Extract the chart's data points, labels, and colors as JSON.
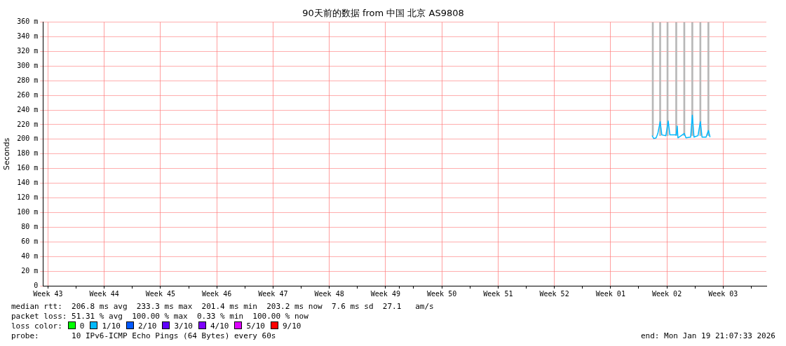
{
  "chart_data": {
    "type": "line",
    "title": "90天前的数据 from 中国 北京 AS9808",
    "ylabel": "Seconds",
    "xlim": [
      "2025-10-21T21:07",
      "2026-01-19T21:07"
    ],
    "xticks": [
      {
        "value": "2025-10-26",
        "label": null
      },
      {
        "value": "2025-11-02",
        "label": null
      },
      {
        "value": "2025-11-09",
        "label": null
      },
      {
        "value": "2025-11-16",
        "label": null
      },
      {
        "value": "2025-11-23",
        "label": null
      },
      {
        "value": "2025-11-30",
        "label": null
      },
      {
        "value": "2025-12-07",
        "label": null
      },
      {
        "value": "2025-12-14",
        "label": null
      },
      {
        "value": "2025-12-21",
        "label": null
      },
      {
        "value": "2025-12-28",
        "label": null
      },
      {
        "value": "2026-01-04",
        "label": null
      },
      {
        "value": "2026-01-11",
        "label": null
      },
      {
        "value": "2026-01-18",
        "label": null
      },
      {
        "value": "2025-10-22T12:00",
        "label": "Week 43"
      },
      {
        "value": "2025-10-29T12:00",
        "label": "Week 44"
      },
      {
        "value": "2025-11-05T12:00",
        "label": "Week 45"
      },
      {
        "value": "2025-11-12T12:00",
        "label": "Week 46"
      },
      {
        "value": "2025-11-19T12:00",
        "label": "Week 47"
      },
      {
        "value": "2025-11-26T12:00",
        "label": "Week 48"
      },
      {
        "value": "2025-12-03T12:00",
        "label": "Week 49"
      },
      {
        "value": "2025-12-10T12:00",
        "label": "Week 50"
      },
      {
        "value": "2025-12-17T12:00",
        "label": "Week 51"
      },
      {
        "value": "2025-12-24T12:00",
        "label": "Week 52"
      },
      {
        "value": "2025-12-31T12:00",
        "label": "Week 01"
      },
      {
        "value": "2026-01-07T12:00",
        "label": "Week 02"
      },
      {
        "value": "2026-01-14T12:00",
        "label": "Week 03"
      }
    ],
    "ylim": [
      0,
      360
    ],
    "yticks": [
      {
        "value": 0,
        "label": "0"
      },
      {
        "value": 20,
        "label": "20 m"
      },
      {
        "value": 40,
        "label": "40 m"
      },
      {
        "value": 60,
        "label": "60 m"
      },
      {
        "value": 80,
        "label": "80 m"
      },
      {
        "value": 100,
        "label": "100 m"
      },
      {
        "value": 120,
        "label": "120 m"
      },
      {
        "value": 140,
        "label": "140 m"
      },
      {
        "value": 160,
        "label": "160 m"
      },
      {
        "value": 180,
        "label": "180 m"
      },
      {
        "value": 200,
        "label": "200 m"
      },
      {
        "value": 220,
        "label": "220 m"
      },
      {
        "value": 240,
        "label": "240 m"
      },
      {
        "value": 260,
        "label": "260 m"
      },
      {
        "value": 280,
        "label": "280 m"
      },
      {
        "value": 300,
        "label": "300 m"
      },
      {
        "value": 320,
        "label": "320 m"
      },
      {
        "value": 340,
        "label": "340 m"
      },
      {
        "value": 360,
        "label": "360 m"
      }
    ],
    "grid": true,
    "marker": "none",
    "line_style": "solid",
    "series": [
      {
        "type": "bar",
        "color": "#b8b8b8",
        "x": [
          "2026-01-05T18:00",
          "2026-01-06T16:00",
          "2026-01-07T14:00",
          "2026-01-08T16:00",
          "2026-01-09T16:00",
          "2026-01-10T16:00",
          "2026-01-11T16:00",
          "2026-01-12T16:00"
        ],
        "base": [
          205,
          205,
          205,
          205,
          205,
          205,
          205,
          205
        ],
        "values": [
          155,
          155,
          155,
          155,
          155,
          155,
          155,
          155
        ]
      },
      {
        "color": "#00b8ff",
        "x": [
          "2026-01-05T16:00",
          "2026-01-05T21:00",
          "2026-01-06T04:00",
          "2026-01-06T09:00",
          "2026-01-06T16:00",
          "2026-01-06T21:00",
          "2026-01-07T09:00",
          "2026-01-07T16:00",
          "2026-01-07T21:00",
          "2026-01-08T16:00",
          "2026-01-08T19:00",
          "2026-01-08T21:00",
          "2026-01-09T07:00",
          "2026-01-09T16:00",
          "2026-01-09T21:00",
          "2026-01-10T11:00",
          "2026-01-10T16:00",
          "2026-01-10T21:00",
          "2026-01-11T09:00",
          "2026-01-11T16:00",
          "2026-01-11T21:00",
          "2026-01-12T09:00",
          "2026-01-12T16:00",
          "2026-01-12T21:00"
        ],
        "values": [
          205,
          201,
          202,
          208,
          224,
          206,
          205,
          225,
          206,
          206,
          218,
          202,
          205,
          208,
          202,
          203,
          233,
          203,
          205,
          224,
          203,
          203,
          212,
          203
        ]
      }
    ],
    "annotations": [
      "median rtt:  206.8 ms avg  233.3 ms max  201.4 ms min  203.2 ms now  7.6 ms sd  27.1   am/s",
      "packet loss: 51.31 % avg  100.00 % max  0.33 % min  100.00 % now",
      "loss color:",
      "0",
      "1/10",
      "2/10",
      "3/10",
      "4/10",
      "5/10",
      "9/10",
      "probe:       10 IPv6-ICMP Echo Pings (64 Bytes) every 60s",
      "end: Mon Jan 19 21:07:33 2026"
    ]
  }
}
